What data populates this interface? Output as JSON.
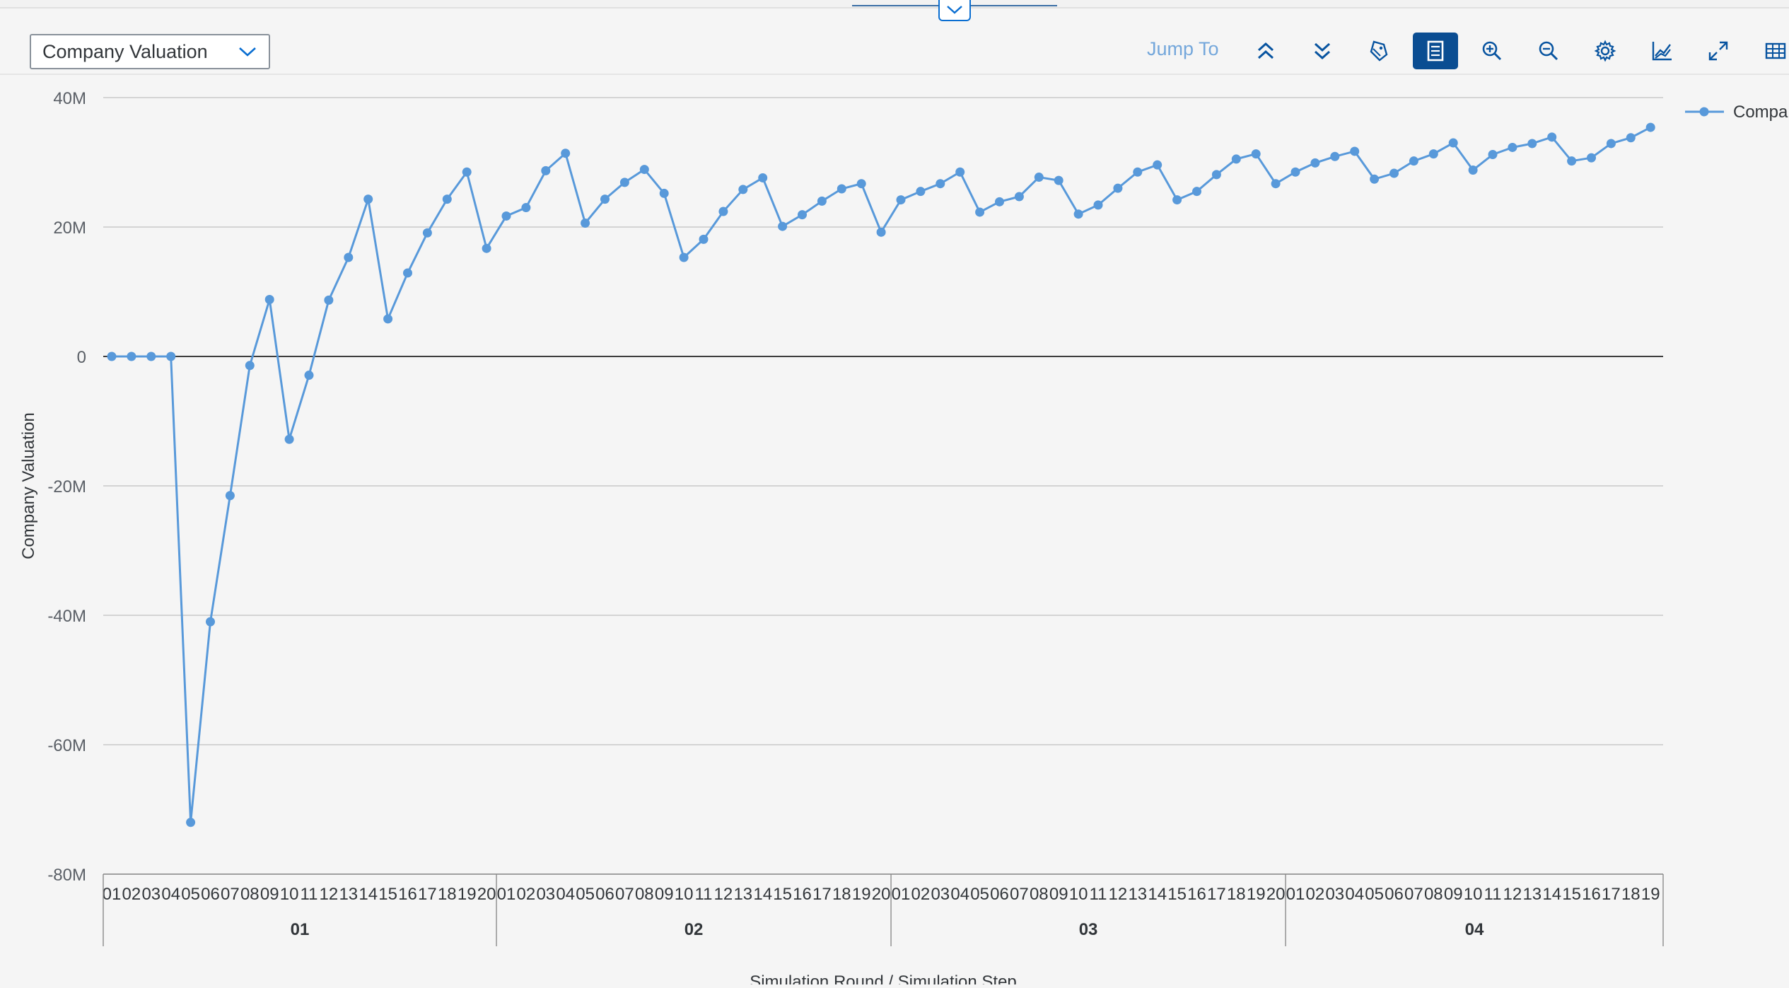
{
  "toolbar": {
    "measure_select": {
      "value": "Company Valuation"
    },
    "jump_to_label": "Jump To",
    "buttons": [
      {
        "name": "drill-up-button",
        "icon": "double-chevron-up-icon"
      },
      {
        "name": "drill-down-button",
        "icon": "double-chevron-down-icon"
      },
      {
        "name": "legend-button",
        "icon": "tag-icon"
      },
      {
        "name": "chart-table-toggle-button",
        "icon": "table-view-icon",
        "active": true
      },
      {
        "name": "zoom-in-button",
        "icon": "zoom-in-icon"
      },
      {
        "name": "zoom-out-icon-button",
        "icon": "zoom-out-icon"
      },
      {
        "name": "settings-button",
        "icon": "gear-icon"
      },
      {
        "name": "chart-type-button",
        "icon": "line-chart-icon"
      },
      {
        "name": "fullscreen-button",
        "icon": "expand-icon"
      },
      {
        "name": "table-button",
        "icon": "grid-table-icon"
      }
    ]
  },
  "colors": {
    "series": "#5899da",
    "active_button": "#0a4d92",
    "link": "#74a7db"
  },
  "chart_data": {
    "type": "line",
    "ylabel": "Company Valuation",
    "xlabel": "Simulation Round / Simulation Step",
    "legend_label": "Compar",
    "legend_position": "top-right",
    "ylim": [
      -80000000,
      40000000
    ],
    "yticks": [
      40000000,
      20000000,
      0,
      -20000000,
      -40000000,
      -60000000,
      -80000000
    ],
    "ytick_labels": [
      "40M",
      "20M",
      "0",
      "-20M",
      "-40M",
      "-60M",
      "-80M"
    ],
    "grid": true,
    "groups": [
      {
        "label": "01",
        "steps": [
          "01",
          "02",
          "03",
          "04",
          "05",
          "06",
          "07",
          "08",
          "09",
          "10",
          "11",
          "12",
          "13",
          "14",
          "15",
          "16",
          "17",
          "18",
          "19",
          "20"
        ]
      },
      {
        "label": "02",
        "steps": [
          "01",
          "02",
          "03",
          "04",
          "05",
          "06",
          "07",
          "08",
          "09",
          "10",
          "11",
          "12",
          "13",
          "14",
          "15",
          "16",
          "17",
          "18",
          "19",
          "20"
        ]
      },
      {
        "label": "03",
        "steps": [
          "01",
          "02",
          "03",
          "04",
          "05",
          "06",
          "07",
          "08",
          "09",
          "10",
          "11",
          "12",
          "13",
          "14",
          "15",
          "16",
          "17",
          "18",
          "19",
          "20"
        ]
      },
      {
        "label": "04",
        "steps": [
          "01",
          "02",
          "03",
          "04",
          "05",
          "06",
          "07",
          "08",
          "09",
          "10",
          "11",
          "12",
          "13",
          "14",
          "15",
          "16",
          "17",
          "18",
          "19"
        ]
      }
    ],
    "series": [
      {
        "values": [
          0,
          0,
          0,
          0,
          -72000000,
          -41000000,
          -21500000,
          -1400000,
          8800000,
          -12800000,
          -2900000,
          8700000,
          15300000,
          24300000,
          5800000,
          12900000,
          19100000,
          24300000,
          28500000,
          16700000,
          21700000,
          23000000,
          28700000,
          31400000,
          20600000,
          24300000,
          26900000,
          28900000,
          25200000,
          15300000,
          18100000,
          22400000,
          25800000,
          27600000,
          20100000,
          21900000,
          24000000,
          25900000,
          26700000,
          19200000,
          24200000,
          25500000,
          26700000,
          28500000,
          22300000,
          23900000,
          24700000,
          27700000,
          27200000,
          22000000,
          23400000,
          26000000,
          28500000,
          29600000,
          24200000,
          25500000,
          28100000,
          30500000,
          31300000,
          26700000,
          28500000,
          29900000,
          30900000,
          31700000,
          27400000,
          28300000,
          30200000,
          31300000,
          33000000,
          28800000,
          31200000,
          32300000,
          32900000,
          33900000,
          30200000,
          30700000,
          32900000,
          33800000,
          35400000
        ]
      }
    ]
  }
}
